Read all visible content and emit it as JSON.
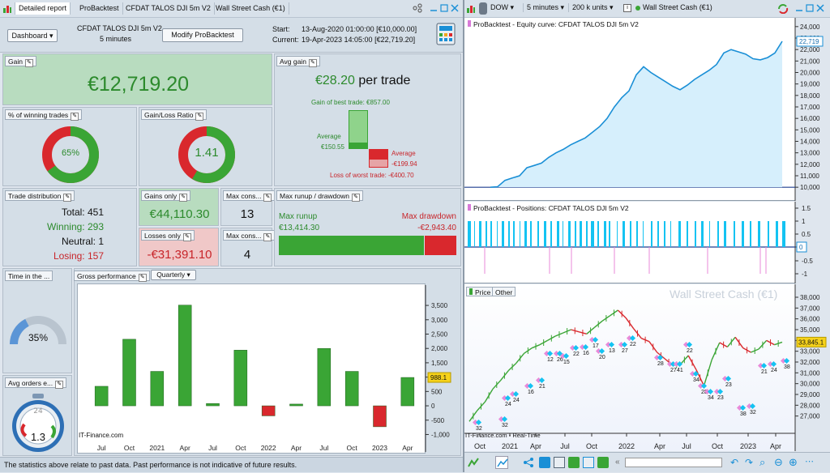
{
  "top_tabs": [
    "Detailed report",
    "ProBacktest",
    "CFDAT TALOS DJI 5m V2",
    "Wall Street Cash (€1)"
  ],
  "dashboard": {
    "label": "Dashboard",
    "strategy": "CFDAT TALOS DJI 5m V2",
    "timeframe": "5 minutes",
    "modify_button": "Modify ProBacktest",
    "start_label": "Start:",
    "start_value": "13-Aug-2020 01:00:00 [€10,000.00]",
    "current_label": "Current:",
    "current_value": "19-Apr-2023 14:05:00 [€22,719.20]"
  },
  "gain": {
    "title": "Gain",
    "value": "€12,719.20"
  },
  "avg_gain": {
    "title": "Avg gain",
    "value": "€28.20",
    "suffix": "per trade",
    "best_label": "Gain of best trade: €857.00",
    "avg_label": "Average",
    "avg_pos": "€150.55",
    "avg_neg_label": "Average",
    "avg_neg": "-€199.94",
    "worst_label": "Loss of worst trade: -€400.70"
  },
  "winning": {
    "title": "% of winning trades",
    "value": "65%",
    "fraction": 0.65
  },
  "ratio": {
    "title": "Gain/Loss Ratio",
    "value": "1.41",
    "fraction": 0.585
  },
  "distribution": {
    "title": "Trade distribution",
    "total": "Total: 451",
    "winning": "Winning: 293",
    "neutral": "Neutral: 1",
    "losing": "Losing: 157"
  },
  "gains_only": {
    "title": "Gains only",
    "value": "€44,110.30"
  },
  "losses_only": {
    "title": "Losses only",
    "value": "-€31,391.10"
  },
  "max_cons_1": {
    "title": "Max cons...",
    "value": "13"
  },
  "max_cons_2": {
    "title": "Max cons...",
    "value": "4"
  },
  "runup": {
    "title": "Max runup / drawdown",
    "runup_label": "Max runup",
    "runup_value": "€13,414.30",
    "drawdown_label": "Max drawdown",
    "drawdown_value": "-€2,943.40"
  },
  "time_in": {
    "title": "Time in the ...",
    "value": "35%",
    "fraction": 0.35
  },
  "avg_orders": {
    "title": "Avg orders e...",
    "value": "1.3"
  },
  "gross": {
    "title": "Gross performance",
    "period": "Quarterly",
    "watermark": "IT-Finance.com",
    "current_tag": "988.1"
  },
  "chart_data": [
    {
      "type": "bar",
      "title": "Gross performance",
      "categories": [
        "Jul 2020",
        "Oct 2020",
        "2021",
        "Apr 2021",
        "Jul 2021",
        "Oct 2021",
        "2022",
        "Apr 2022",
        "Jul 2022",
        "Oct 2022",
        "2023",
        "Apr 2023"
      ],
      "values": [
        680,
        2320,
        1200,
        3510,
        80,
        1940,
        -350,
        60,
        2000,
        1200,
        -730,
        988.1
      ],
      "x_ticks": [
        "Jul",
        "Oct",
        "2021",
        "Apr",
        "Jul",
        "Oct",
        "2022",
        "Apr",
        "Jul",
        "Oct",
        "2023",
        "Apr"
      ],
      "y_ticks": [
        "3,500",
        "3,000",
        "2,500",
        "2,000",
        "1,500",
        "1,000",
        "500",
        "0",
        "-500",
        "-1,000"
      ],
      "ylim": [
        -1100,
        3700
      ]
    },
    {
      "type": "area",
      "title": "ProBacktest - Equity curve: CFDAT TALOS DJI 5m V2",
      "current": "22,719",
      "y_ticks": [
        "24,000",
        "23,000",
        "22,000",
        "21,000",
        "20,000",
        "19,000",
        "18,000",
        "17,000",
        "16,000",
        "15,000",
        "14,000",
        "13,000",
        "12,000",
        "11,000",
        "10,000"
      ],
      "ylim": [
        9800,
        24200
      ],
      "values": [
        10000,
        10050,
        10600,
        10800,
        11000,
        11700,
        11900,
        12100,
        12600,
        13000,
        13300,
        13700,
        14000,
        14300,
        14800,
        15300,
        16000,
        17000,
        17800,
        18400,
        19800,
        20500,
        20000,
        19600,
        19200,
        18800,
        18500,
        18900,
        19400,
        19800,
        20200,
        20700,
        21700,
        22000,
        21800,
        21600,
        21200,
        21100,
        21300,
        21700,
        22719
      ]
    },
    {
      "type": "line",
      "title": "ProBacktest - Positions: CFDAT TALOS DJI 5m V2",
      "y_ticks": [
        "1.5",
        "1",
        "0.5",
        "0",
        "-0.5",
        "-1"
      ],
      "current": "0"
    },
    {
      "type": "line",
      "title": "Price",
      "legend_other": "Other",
      "watermark_right": "Wall Street Cash (€1)",
      "current": "33,845.1",
      "y_ticks": [
        "38,000",
        "37,000",
        "36,000",
        "35,000",
        "34,000",
        "33,000",
        "32,000",
        "31,000",
        "30,000",
        "29,000",
        "28,000",
        "27,000"
      ],
      "ylim": [
        26300,
        38300
      ],
      "x_ticks": [
        "Oct",
        "2021",
        "Apr",
        "Jul",
        "Oct",
        "2022",
        "Apr",
        "Jul",
        "Oct",
        "2023",
        "Apr"
      ],
      "values": [
        26500,
        27500,
        28300,
        29500,
        30300,
        31200,
        31900,
        32800,
        33300,
        33600,
        34000,
        34400,
        34700,
        35000,
        34800,
        34600,
        35200,
        35800,
        36300,
        36800,
        36100,
        35100,
        34200,
        33900,
        32900,
        32300,
        31700,
        31800,
        32600,
        31300,
        29800,
        32200,
        33800,
        33400,
        34300,
        33300,
        32900,
        33200,
        34000,
        33600,
        33845
      ]
    }
  ],
  "right_window": {
    "symbol": "DOW",
    "interval": "5 minutes",
    "units": "200 k units",
    "instrument": "Wall Street Cash (€1)",
    "price_tab": "Price",
    "other_tab": "Other",
    "bottom_watermark": "IT-Finance.com - Real-Time"
  },
  "footer": "The statistics above relate to past data. Past performance is not indicative of future results.",
  "colors": {
    "green": "#3aa535",
    "red": "#d9282d",
    "blue": "#1a8fd6",
    "cyan": "#14c3f2"
  }
}
